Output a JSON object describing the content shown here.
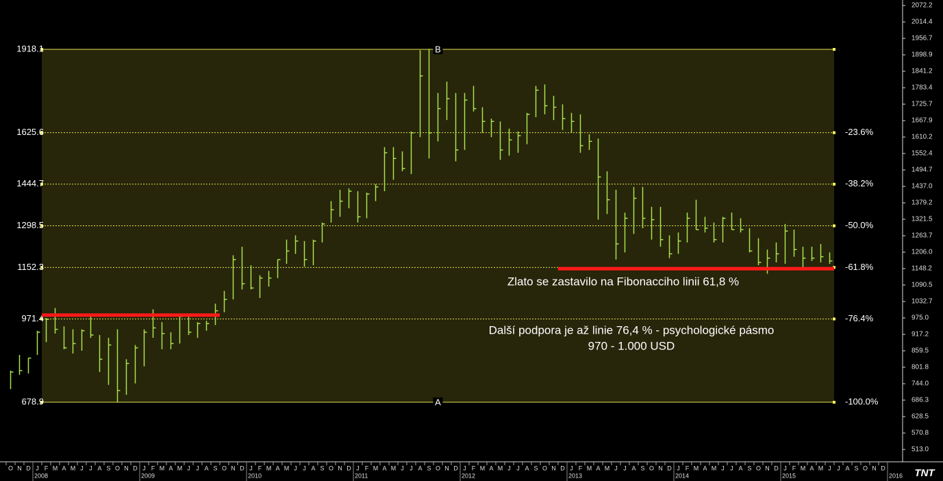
{
  "chart_data": {
    "type": "ohlc",
    "x": [
      "2007-10",
      "2007-11",
      "2007-12",
      "2008-01",
      "2008-02",
      "2008-03",
      "2008-04",
      "2008-05",
      "2008-06",
      "2008-07",
      "2008-08",
      "2008-09",
      "2008-10",
      "2008-11",
      "2008-12",
      "2009-01",
      "2009-02",
      "2009-03",
      "2009-04",
      "2009-05",
      "2009-06",
      "2009-07",
      "2009-08",
      "2009-09",
      "2009-10",
      "2009-11",
      "2009-12",
      "2010-01",
      "2010-02",
      "2010-03",
      "2010-04",
      "2010-05",
      "2010-06",
      "2010-07",
      "2010-08",
      "2010-09",
      "2010-10",
      "2010-11",
      "2010-12",
      "2011-01",
      "2011-02",
      "2011-03",
      "2011-04",
      "2011-05",
      "2011-06",
      "2011-07",
      "2011-08",
      "2011-09",
      "2011-10",
      "2011-11",
      "2011-12",
      "2012-01",
      "2012-02",
      "2012-03",
      "2012-04",
      "2012-05",
      "2012-06",
      "2012-07",
      "2012-08",
      "2012-09",
      "2012-10",
      "2012-11",
      "2012-12",
      "2013-01",
      "2013-02",
      "2013-03",
      "2013-04",
      "2013-05",
      "2013-06",
      "2013-07",
      "2013-08",
      "2013-09",
      "2013-10",
      "2013-11",
      "2013-12",
      "2014-01",
      "2014-02",
      "2014-03",
      "2014-04",
      "2014-05",
      "2014-06",
      "2014-07",
      "2014-08",
      "2014-09",
      "2014-10",
      "2014-11",
      "2014-12",
      "2015-01",
      "2015-02",
      "2015-03",
      "2015-04",
      "2015-05",
      "2015-06"
    ],
    "high": [
      790,
      845,
      835,
      930,
      975,
      1010,
      945,
      935,
      935,
      985,
      915,
      905,
      935,
      830,
      880,
      935,
      1005,
      960,
      925,
      985,
      990,
      960,
      965,
      1025,
      1070,
      1195,
      1225,
      1160,
      1125,
      1140,
      1180,
      1250,
      1265,
      1245,
      1250,
      1310,
      1385,
      1425,
      1430,
      1420,
      1415,
      1445,
      1575,
      1575,
      1560,
      1630,
      1915,
      1920,
      1765,
      1805,
      1765,
      1765,
      1790,
      1715,
      1675,
      1665,
      1640,
      1630,
      1695,
      1790,
      1795,
      1755,
      1725,
      1695,
      1690,
      1620,
      1605,
      1490,
      1425,
      1345,
      1435,
      1435,
      1365,
      1365,
      1265,
      1275,
      1345,
      1390,
      1330,
      1310,
      1330,
      1345,
      1325,
      1290,
      1255,
      1215,
      1240,
      1305,
      1285,
      1225,
      1225,
      1235,
      1205
    ],
    "low": [
      725,
      775,
      780,
      845,
      890,
      920,
      865,
      850,
      860,
      905,
      785,
      740,
      680,
      705,
      745,
      805,
      905,
      865,
      865,
      885,
      915,
      905,
      930,
      950,
      995,
      1040,
      1075,
      1075,
      1045,
      1085,
      1115,
      1165,
      1200,
      1155,
      1160,
      1240,
      1310,
      1330,
      1360,
      1310,
      1325,
      1385,
      1420,
      1460,
      1490,
      1480,
      1610,
      1535,
      1595,
      1670,
      1525,
      1565,
      1700,
      1625,
      1610,
      1530,
      1545,
      1555,
      1585,
      1680,
      1690,
      1670,
      1635,
      1625,
      1555,
      1565,
      1320,
      1340,
      1180,
      1205,
      1270,
      1290,
      1250,
      1225,
      1185,
      1200,
      1240,
      1285,
      1275,
      1240,
      1240,
      1285,
      1275,
      1205,
      1160,
      1130,
      1170,
      1165,
      1190,
      1145,
      1175,
      1170,
      1165
    ],
    "close": [
      785,
      790,
      834,
      925,
      970,
      935,
      870,
      885,
      930,
      915,
      830,
      880,
      720,
      815,
      870,
      925,
      940,
      920,
      885,
      980,
      925,
      955,
      955,
      1000,
      1040,
      1180,
      1095,
      1080,
      1115,
      1115,
      1180,
      1210,
      1245,
      1180,
      1245,
      1305,
      1355,
      1385,
      1420,
      1330,
      1410,
      1435,
      1555,
      1535,
      1500,
      1625,
      1825,
      1625,
      1710,
      1745,
      1565,
      1740,
      1710,
      1665,
      1665,
      1565,
      1600,
      1615,
      1690,
      1775,
      1720,
      1715,
      1675,
      1665,
      1580,
      1595,
      1470,
      1390,
      1235,
      1325,
      1395,
      1325,
      1320,
      1250,
      1200,
      1245,
      1325,
      1285,
      1290,
      1250,
      1325,
      1285,
      1285,
      1210,
      1170,
      1185,
      1200,
      1280,
      1215,
      1185,
      1185,
      1190,
      1175
    ],
    "color": "#a8e44c",
    "ylim": [
      474.5,
      2091.5
    ],
    "yticks": [
      2072.2,
      2014.4,
      1956.7,
      1898.9,
      1841.2,
      1783.4,
      1725.7,
      1667.9,
      1610.2,
      1552.4,
      1494.7,
      {
        "value": 1437,
        "label": "1437.0"
      },
      1379.2,
      1321.5,
      1263.7,
      {
        "value": 1206,
        "label": "1206.0"
      },
      1148.2,
      1090.5,
      1032.7,
      {
        "value": 975,
        "label": "975.0"
      },
      917.2,
      859.5,
      801.8,
      {
        "value": 744,
        "label": "744.0"
      },
      686.3,
      628.5,
      570.8,
      {
        "value": 513,
        "label": "513.0"
      }
    ],
    "xticks": [
      {
        "value": "2007-10",
        "label": "O"
      },
      {
        "value": "2007-11",
        "label": "N"
      },
      {
        "value": "2007-12",
        "label": "D"
      },
      {
        "value": "2008-01",
        "label": "J"
      },
      {
        "value": "2008-02",
        "label": "F"
      },
      {
        "value": "2008-03",
        "label": "M"
      },
      {
        "value": "2008-04",
        "label": "A"
      },
      {
        "value": "2008-05",
        "label": "M"
      },
      {
        "value": "2008-06",
        "label": "J"
      },
      {
        "value": "2008-07",
        "label": "J"
      },
      {
        "value": "2008-08",
        "label": "A"
      },
      {
        "value": "2008-09",
        "label": "S"
      },
      {
        "value": "2008-10",
        "label": "O"
      },
      {
        "value": "2008-11",
        "label": "N"
      },
      {
        "value": "2008-12",
        "label": "D"
      },
      {
        "value": "2009-01",
        "label": "J"
      },
      {
        "value": "2009-02",
        "label": "F"
      },
      {
        "value": "2009-03",
        "label": "M"
      },
      {
        "value": "2009-04",
        "label": "A"
      },
      {
        "value": "2009-05",
        "label": "M"
      },
      {
        "value": "2009-06",
        "label": "J"
      },
      {
        "value": "2009-07",
        "label": "J"
      },
      {
        "value": "2009-08",
        "label": "A"
      },
      {
        "value": "2009-09",
        "label": "S"
      },
      {
        "value": "2009-10",
        "label": "O"
      },
      {
        "value": "2009-11",
        "label": "N"
      },
      {
        "value": "2009-12",
        "label": "D"
      },
      {
        "value": "2010-01",
        "label": "J"
      },
      {
        "value": "2010-02",
        "label": "F"
      },
      {
        "value": "2010-03",
        "label": "M"
      },
      {
        "value": "2010-04",
        "label": "A"
      },
      {
        "value": "2010-05",
        "label": "M"
      },
      {
        "value": "2010-06",
        "label": "J"
      },
      {
        "value": "2010-07",
        "label": "J"
      },
      {
        "value": "2010-08",
        "label": "A"
      },
      {
        "value": "2010-09",
        "label": "S"
      },
      {
        "value": "2010-10",
        "label": "O"
      },
      {
        "value": "2010-11",
        "label": "N"
      },
      {
        "value": "2010-12",
        "label": "D"
      },
      {
        "value": "2011-01",
        "label": "J"
      },
      {
        "value": "2011-02",
        "label": "F"
      },
      {
        "value": "2011-03",
        "label": "M"
      },
      {
        "value": "2011-04",
        "label": "A"
      },
      {
        "value": "2011-05",
        "label": "M"
      },
      {
        "value": "2011-06",
        "label": "J"
      },
      {
        "value": "2011-07",
        "label": "J"
      },
      {
        "value": "2011-08",
        "label": "A"
      },
      {
        "value": "2011-09",
        "label": "S"
      },
      {
        "value": "2011-10",
        "label": "O"
      },
      {
        "value": "2011-11",
        "label": "N"
      },
      {
        "value": "2011-12",
        "label": "D"
      },
      {
        "value": "2012-01",
        "label": "J"
      },
      {
        "value": "2012-02",
        "label": "F"
      },
      {
        "value": "2012-03",
        "label": "M"
      },
      {
        "value": "2012-04",
        "label": "A"
      },
      {
        "value": "2012-05",
        "label": "M"
      },
      {
        "value": "2012-06",
        "label": "J"
      },
      {
        "value": "2012-07",
        "label": "J"
      },
      {
        "value": "2012-08",
        "label": "A"
      },
      {
        "value": "2012-09",
        "label": "S"
      },
      {
        "value": "2012-10",
        "label": "O"
      },
      {
        "value": "2012-11",
        "label": "N"
      },
      {
        "value": "2012-12",
        "label": "D"
      },
      {
        "value": "2013-01",
        "label": "J"
      },
      {
        "value": "2013-02",
        "label": "F"
      },
      {
        "value": "2013-03",
        "label": "M"
      },
      {
        "value": "2013-04",
        "label": "A"
      },
      {
        "value": "2013-05",
        "label": "M"
      },
      {
        "value": "2013-06",
        "label": "J"
      },
      {
        "value": "2013-07",
        "label": "J"
      },
      {
        "value": "2013-08",
        "label": "A"
      },
      {
        "value": "2013-09",
        "label": "S"
      },
      {
        "value": "2013-10",
        "label": "O"
      },
      {
        "value": "2013-11",
        "label": "N"
      },
      {
        "value": "2013-12",
        "label": "D"
      },
      {
        "value": "2014-01",
        "label": "J"
      },
      {
        "value": "2014-02",
        "label": "F"
      },
      {
        "value": "2014-03",
        "label": "M"
      },
      {
        "value": "2014-04",
        "label": "A"
      },
      {
        "value": "2014-05",
        "label": "M"
      },
      {
        "value": "2014-06",
        "label": "J"
      },
      {
        "value": "2014-07",
        "label": "J"
      },
      {
        "value": "2014-08",
        "label": "A"
      },
      {
        "value": "2014-09",
        "label": "S"
      },
      {
        "value": "2014-10",
        "label": "O"
      },
      {
        "value": "2014-11",
        "label": "N"
      },
      {
        "value": "2014-12",
        "label": "D"
      },
      {
        "value": "2015-01",
        "label": "J"
      },
      {
        "value": "2015-02",
        "label": "F"
      },
      {
        "value": "2015-03",
        "label": "M"
      },
      {
        "value": "2015-04",
        "label": "A"
      },
      {
        "value": "2015-05",
        "label": "M"
      },
      {
        "value": "2015-06",
        "label": "J"
      },
      {
        "value": "2015-07",
        "label": "J"
      },
      {
        "value": "2015-08",
        "label": "A"
      },
      {
        "value": "2015-09",
        "label": "S"
      },
      {
        "value": "2015-10",
        "label": "O"
      },
      {
        "value": "2015-11",
        "label": "N"
      },
      {
        "value": "2015-12",
        "label": "D"
      }
    ],
    "year_ticks": [
      {
        "value": "2008-01",
        "label": "2008"
      },
      {
        "value": "2009-01",
        "label": "2009"
      },
      {
        "value": "2010-01",
        "label": "2010"
      },
      {
        "value": "2011-01",
        "label": "2011"
      },
      {
        "value": "2012-01",
        "label": "2012"
      },
      {
        "value": "2013-01",
        "label": "2013"
      },
      {
        "value": "2014-01",
        "label": "2014"
      },
      {
        "value": "2015-01",
        "label": "2015"
      },
      {
        "value": "2016-01",
        "label": "2016"
      }
    ],
    "fib_range": [
      "2008-02",
      "2015-07"
    ],
    "fib_levels": [
      {
        "value": 1918.1,
        "marker": "B"
      },
      {
        "value": 1625.6,
        "label": "-23.6%"
      },
      {
        "value": 1444.7,
        "label": "-38.2%"
      },
      {
        "value": 1298.5,
        "label": "-50.0%"
      },
      {
        "value": 1152.3,
        "label": "-61.8%"
      },
      {
        "value": 971.4,
        "label": "-76.4%"
      },
      {
        "value": 678.9,
        "label": "-100.0%",
        "marker": "A"
      }
    ],
    "support_lines": [
      {
        "start": "2008-02",
        "end": "2009-10",
        "value": 985
      },
      {
        "start": "2012-12",
        "end": "2015-07",
        "value": 1148
      }
    ],
    "annotations": [
      "Zlato se zastavilo na Fibonacciho linii 61,8 %",
      "Další podpora je až linie 76,4 % - psychologické pásmo",
      "970 - 1.000 USD"
    ],
    "logo": "TNT"
  }
}
